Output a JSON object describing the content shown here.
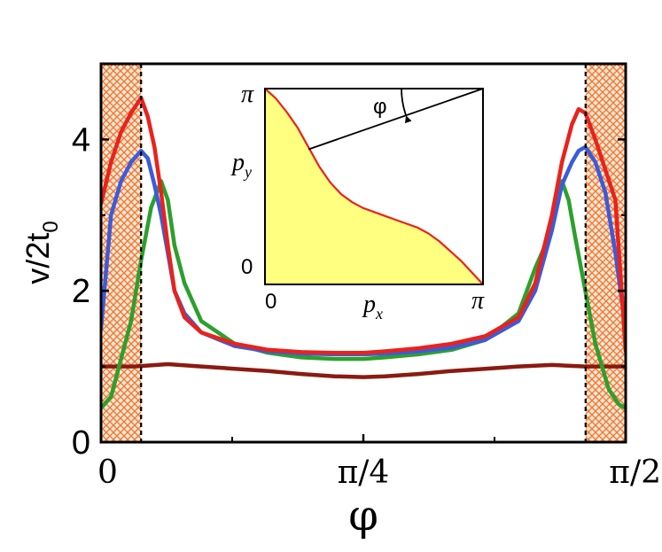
{
  "chart_data": {
    "type": "line",
    "title": "",
    "xlabel": "φ",
    "ylabel": "v/2t0",
    "ylabel_main": "v/2t",
    "ylabel_sub": "0",
    "xlim": [
      0,
      1.5708
    ],
    "ylim": [
      0,
      5
    ],
    "grid": false,
    "x_tick_labels": [
      "0",
      "π/4",
      "π/2"
    ],
    "x_ticks": [
      0,
      0.7854,
      1.5708
    ],
    "y_tick_labels": [
      "0",
      "2",
      "4"
    ],
    "y_ticks": [
      0,
      2,
      4
    ],
    "shaded_regions": [
      {
        "x_from": 0,
        "x_to": 0.12,
        "pattern": "crosshatch",
        "color": "#f07830"
      },
      {
        "x_from": 1.4508,
        "x_to": 1.5708,
        "pattern": "crosshatch",
        "color": "#f07830"
      }
    ],
    "dashed_vlines": [
      0.12,
      1.4508
    ],
    "series": [
      {
        "color": "#8b1a10",
        "x": [
          0,
          0.1,
          0.2,
          0.3,
          0.4,
          0.5,
          0.6,
          0.7,
          0.7854,
          0.85,
          0.95,
          1.05,
          1.15,
          1.25,
          1.35,
          1.45,
          1.5708
        ],
        "y": [
          1.0,
          1.0,
          1.03,
          1.0,
          0.97,
          0.94,
          0.9,
          0.87,
          0.86,
          0.87,
          0.9,
          0.94,
          0.97,
          1.0,
          1.02,
          1.0,
          1.0
        ]
      },
      {
        "color": "#2ca02c",
        "x": [
          0,
          0.03,
          0.06,
          0.09,
          0.12,
          0.15,
          0.18,
          0.2,
          0.22,
          0.25,
          0.3,
          0.4,
          0.5,
          0.6,
          0.7,
          0.7854,
          0.85,
          0.95,
          1.05,
          1.15,
          1.25,
          1.3,
          1.33,
          1.36,
          1.38,
          1.4,
          1.42,
          1.45,
          1.48,
          1.52,
          1.55,
          1.5708
        ],
        "y": [
          0.45,
          0.6,
          1.1,
          1.6,
          2.4,
          3.1,
          3.45,
          3.2,
          2.6,
          2.1,
          1.6,
          1.3,
          1.18,
          1.12,
          1.1,
          1.1,
          1.12,
          1.16,
          1.22,
          1.35,
          1.7,
          2.3,
          2.6,
          3.1,
          3.45,
          3.2,
          2.7,
          2.0,
          1.3,
          0.7,
          0.5,
          0.45
        ]
      },
      {
        "color": "#3b5bdb",
        "x": [
          0,
          0.03,
          0.06,
          0.09,
          0.12,
          0.14,
          0.16,
          0.18,
          0.2,
          0.22,
          0.25,
          0.3,
          0.4,
          0.5,
          0.6,
          0.7,
          0.7854,
          0.85,
          0.95,
          1.05,
          1.15,
          1.25,
          1.3,
          1.35,
          1.38,
          1.41,
          1.43,
          1.45,
          1.48,
          1.51,
          1.54,
          1.5708
        ],
        "y": [
          1.5,
          3.0,
          3.45,
          3.7,
          3.85,
          3.75,
          3.4,
          3.0,
          2.5,
          2.0,
          1.7,
          1.45,
          1.27,
          1.2,
          1.17,
          1.16,
          1.16,
          1.17,
          1.2,
          1.25,
          1.35,
          1.6,
          2.0,
          2.8,
          3.4,
          3.7,
          3.85,
          3.9,
          3.7,
          3.3,
          2.5,
          1.5
        ]
      },
      {
        "color": "#e8231c",
        "x": [
          0,
          0.03,
          0.06,
          0.09,
          0.12,
          0.14,
          0.16,
          0.18,
          0.2,
          0.22,
          0.25,
          0.3,
          0.4,
          0.5,
          0.6,
          0.7,
          0.7854,
          0.85,
          0.95,
          1.05,
          1.15,
          1.25,
          1.3,
          1.35,
          1.38,
          1.41,
          1.43,
          1.45,
          1.48,
          1.51,
          1.54,
          1.5708
        ],
        "y": [
          3.15,
          3.7,
          4.1,
          4.35,
          4.55,
          4.3,
          3.9,
          3.3,
          2.6,
          2.0,
          1.65,
          1.45,
          1.3,
          1.22,
          1.19,
          1.18,
          1.18,
          1.2,
          1.24,
          1.3,
          1.4,
          1.65,
          2.1,
          3.0,
          3.7,
          4.2,
          4.4,
          4.35,
          4.0,
          3.6,
          3.2,
          1.2
        ]
      }
    ],
    "inset": {
      "xlabel": "p",
      "xlabel_sub": "x",
      "ylabel": "p",
      "ylabel_sub": "y",
      "angle_label": "φ",
      "x_tick_labels": [
        "0",
        "π"
      ],
      "y_tick_labels": [
        "0",
        "π"
      ],
      "xlim": [
        0,
        1
      ],
      "ylim": [
        0,
        1
      ],
      "fill_color": "#ffff80",
      "curve_color": "#e8231c",
      "curve_x": [
        0,
        0.05,
        0.1,
        0.15,
        0.2,
        0.25,
        0.3,
        0.35,
        0.4,
        0.45,
        0.5,
        0.55,
        0.6,
        0.65,
        0.7,
        0.75,
        0.8,
        0.85,
        0.9,
        0.95,
        1.0
      ],
      "curve_y": [
        1.0,
        0.95,
        0.88,
        0.8,
        0.7,
        0.6,
        0.52,
        0.46,
        0.42,
        0.39,
        0.37,
        0.35,
        0.33,
        0.31,
        0.29,
        0.26,
        0.22,
        0.17,
        0.12,
        0.06,
        0.0
      ],
      "angle_line_from": [
        0.2,
        0.69
      ],
      "angle_line_to": [
        1.0,
        1.0
      ]
    }
  }
}
